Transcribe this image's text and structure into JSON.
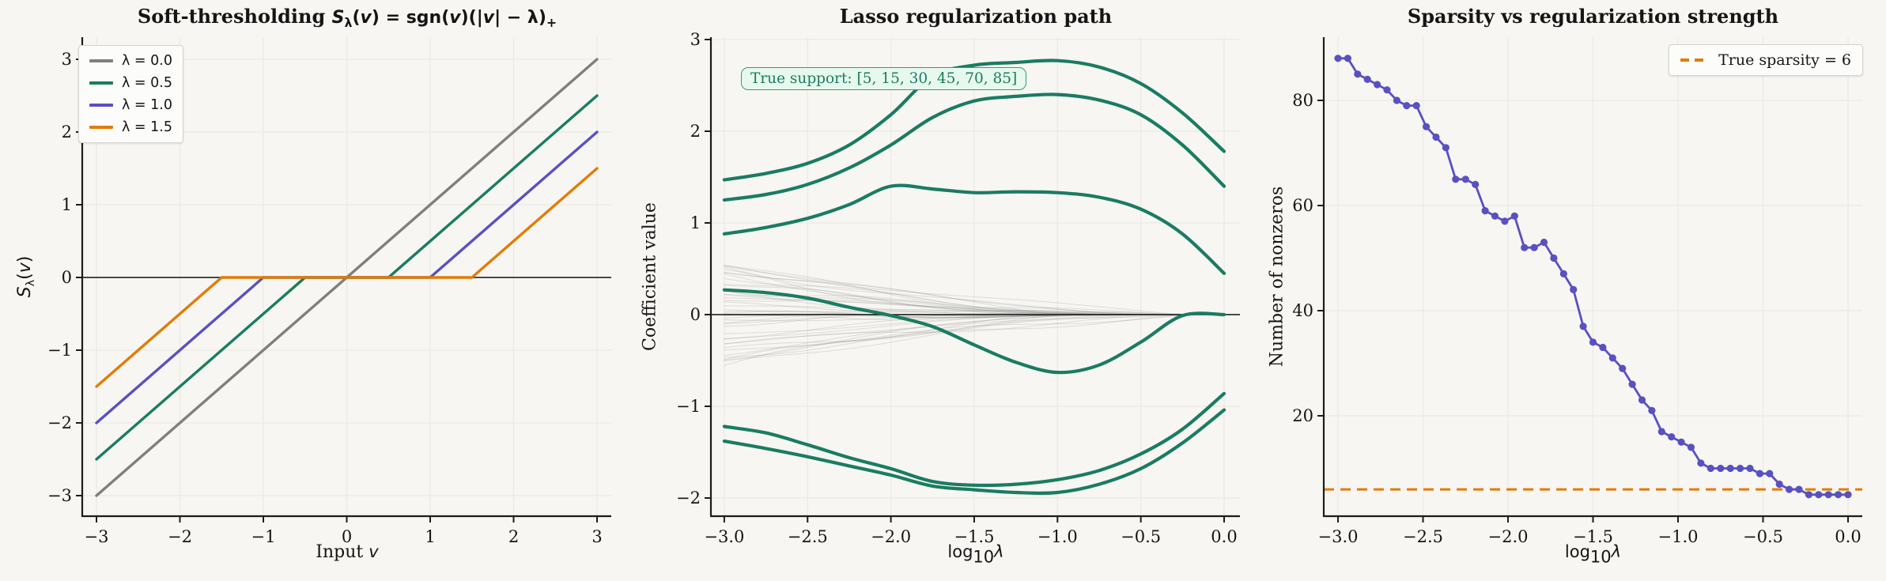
{
  "figure": {
    "background": "#f7f6f2",
    "text_color": "#151515",
    "grid_color": "#ebeae2",
    "spine_color": "#1c1c1c"
  },
  "ui": {
    "panel1": {
      "title_parts": [
        {
          "t": "Soft-thresholding "
        },
        {
          "t": "S"
        },
        {
          "t": "λ"
        },
        {
          "t": "("
        },
        {
          "t": "v"
        },
        {
          "t": ") = sgn("
        },
        {
          "t": "v"
        },
        {
          "t": ")(|"
        },
        {
          "t": "v"
        },
        {
          "t": "| − λ)"
        },
        {
          "t": "+"
        }
      ],
      "xlabel_parts": [
        {
          "t": "Input "
        },
        {
          "t": "v"
        }
      ],
      "ylabel_parts": [
        {
          "t": "S"
        },
        {
          "t": "λ"
        },
        {
          "t": "("
        },
        {
          "t": "v"
        },
        {
          "t": ")"
        }
      ],
      "legend": [
        {
          "label": "λ = 0.0",
          "color": "#7f7f7f"
        },
        {
          "label": "λ = 0.5",
          "color": "#1a7c62"
        },
        {
          "label": "λ = 1.0",
          "color": "#5950c2"
        },
        {
          "label": "λ = 1.5",
          "color": "#e17c05"
        }
      ]
    },
    "panel2": {
      "title": "Lasso regularization path",
      "ylabel": "Coefficient value",
      "xlabel_parts": [
        {
          "t": "log"
        },
        {
          "t": "10"
        },
        {
          "t": "λ"
        }
      ],
      "annotation": "True support: [5, 15, 30, 45, 70, 85]",
      "annotation_colors": {
        "text": "#1a7c62",
        "background": "#e7f9ee",
        "border": "#2f9e77"
      }
    },
    "panel3": {
      "title": "Sparsity vs regularization strength",
      "ylabel": "Number of nonzeros",
      "xlabel_parts": [
        {
          "t": "log"
        },
        {
          "t": "10"
        },
        {
          "t": "λ"
        }
      ],
      "legend_label": "True sparsity = 6"
    }
  },
  "chart_data": [
    {
      "type": "line",
      "title": "Soft-thresholding Sλ(v) = sgn(v)(|v| − λ)+",
      "xlabel": "Input v",
      "ylabel": "Sλ(v)",
      "xlim": [
        -3.2,
        3.2
      ],
      "ylim": [
        -3.3,
        3.3
      ],
      "xticks": [
        -3,
        -2,
        -1,
        0,
        1,
        2,
        3
      ],
      "yticks": [
        -3,
        -2,
        -1,
        0,
        1,
        2,
        3
      ],
      "grid": true,
      "zero_line": true,
      "legend_position": "upper left",
      "series": [
        {
          "name": "λ = 0.0",
          "color": "#7f7f7f",
          "points": [
            [
              -3,
              -3
            ],
            [
              3,
              3
            ]
          ]
        },
        {
          "name": "λ = 0.5",
          "color": "#1a7c62",
          "points": [
            [
              -3,
              -2.5
            ],
            [
              -0.5,
              0
            ],
            [
              0.5,
              0
            ],
            [
              3,
              2.5
            ]
          ]
        },
        {
          "name": "λ = 1.0",
          "color": "#5950c2",
          "points": [
            [
              -3,
              -2
            ],
            [
              -1,
              0
            ],
            [
              1,
              0
            ],
            [
              3,
              2
            ]
          ]
        },
        {
          "name": "λ = 1.5",
          "color": "#e17c05",
          "points": [
            [
              -3,
              -1.5
            ],
            [
              -1.5,
              0
            ],
            [
              1.5,
              0
            ],
            [
              3,
              1.5
            ]
          ]
        }
      ]
    },
    {
      "type": "line",
      "title": "Lasso regularization path",
      "xlabel": "log10 λ",
      "ylabel": "Coefficient value",
      "xlim": [
        -3.15,
        0.15
      ],
      "ylim": [
        -2.2,
        3.05
      ],
      "xticks": [
        -3,
        -2.5,
        -2,
        -1.5,
        -1,
        -0.5,
        0
      ],
      "yticks": [
        -2,
        -1,
        0,
        1,
        2,
        3
      ],
      "grid": true,
      "zero_line": true,
      "annotation": "True support: [5, 15, 30, 45, 70, 85]",
      "support_color": "#1a7c62",
      "x": [
        -3,
        -2.75,
        -2.5,
        -2.25,
        -2,
        -1.75,
        -1.5,
        -1.25,
        -1,
        -0.75,
        -0.5,
        -0.25,
        0
      ],
      "support_series": [
        [
          1.47,
          1.54,
          1.65,
          1.85,
          2.18,
          2.6,
          2.72,
          2.75,
          2.77,
          2.7,
          2.52,
          2.2,
          1.78
        ],
        [
          1.25,
          1.31,
          1.42,
          1.6,
          1.85,
          2.15,
          2.33,
          2.38,
          2.4,
          2.34,
          2.18,
          1.85,
          1.4
        ],
        [
          0.88,
          0.95,
          1.05,
          1.2,
          1.4,
          1.37,
          1.33,
          1.34,
          1.33,
          1.28,
          1.15,
          0.88,
          0.45
        ],
        [
          0.27,
          0.24,
          0.18,
          0.08,
          -0.01,
          -0.13,
          -0.33,
          -0.52,
          -0.63,
          -0.55,
          -0.3,
          -0.01,
          0.0
        ],
        [
          -1.22,
          -1.29,
          -1.42,
          -1.56,
          -1.68,
          -1.82,
          -1.86,
          -1.85,
          -1.8,
          -1.7,
          -1.52,
          -1.25,
          -0.86
        ],
        [
          -1.38,
          -1.46,
          -1.55,
          -1.65,
          -1.75,
          -1.87,
          -1.91,
          -1.94,
          -1.94,
          -1.85,
          -1.68,
          -1.4,
          -1.04
        ]
      ],
      "noise": {
        "count": 42,
        "seed": 9,
        "y_start_range": [
          -0.72,
          0.55
        ],
        "color": "#8a8a8a",
        "opacity": 0.22
      }
    },
    {
      "type": "line",
      "title": "Sparsity vs regularization strength",
      "xlabel": "log10 λ",
      "ylabel": "Number of nonzeros",
      "xlim": [
        -3.15,
        0.15
      ],
      "ylim": [
        1,
        92
      ],
      "xticks": [
        -3,
        -2.5,
        -2,
        -1.5,
        -1,
        -0.5,
        0
      ],
      "yticks": [
        20,
        40,
        60,
        80
      ],
      "grid": true,
      "line_color": "#5950c2",
      "x_range": [
        -3,
        0
      ],
      "values": [
        88,
        88,
        85,
        84,
        83,
        82,
        80,
        79,
        79,
        75,
        73,
        71,
        65,
        65,
        64,
        59,
        58,
        57,
        58,
        52,
        52,
        53,
        50,
        47,
        44,
        37,
        34,
        33,
        31,
        29,
        26,
        23,
        21,
        17,
        16,
        15,
        14,
        11,
        10,
        10,
        10,
        10,
        10,
        9,
        9,
        7,
        6,
        6,
        5,
        5,
        5,
        5,
        5
      ],
      "hline": {
        "y": 6,
        "label": "True sparsity = 6",
        "color": "#e17c05",
        "style": "dashed"
      },
      "legend_position": "upper right"
    }
  ]
}
